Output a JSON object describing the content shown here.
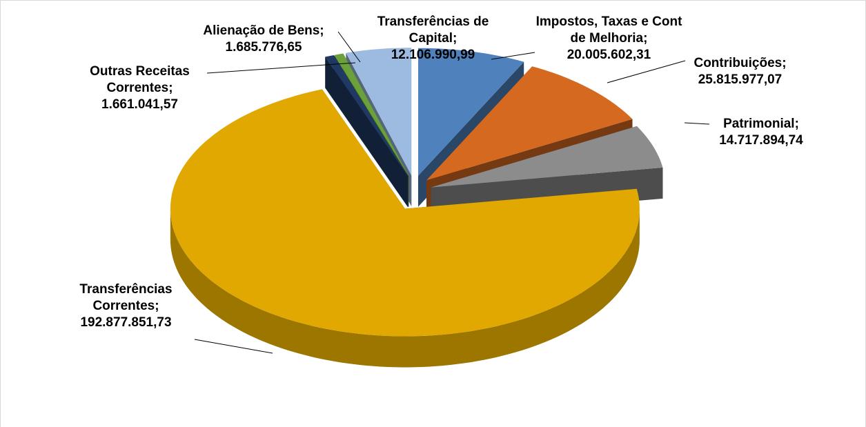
{
  "chart_data": {
    "type": "pie3d",
    "categories": [
      "Impostos, Taxas e Cont de Melhoria;",
      "Contribuições;",
      "Patrimonial;",
      "Transferências Correntes;",
      "Outras Receitas Correntes;",
      "Alienação de Bens;",
      "Transferências de Capital;"
    ],
    "values": [
      20005602.31,
      25815977.07,
      14717894.74,
      192877851.73,
      1661041.57,
      1685776.65,
      12106990.99
    ],
    "value_labels": [
      "20.005.602,31",
      "25.815.977,07",
      "14.717.894,74",
      "192.877.851,73",
      "1.661.041,57",
      "1.685.776,65",
      "12.106.990,99"
    ],
    "colors": [
      "#4f81bd",
      "#d4691f",
      "#8c8c8c",
      "#e0a800",
      "#1f3864",
      "#6aa13a",
      "#9dbbe0"
    ]
  }
}
